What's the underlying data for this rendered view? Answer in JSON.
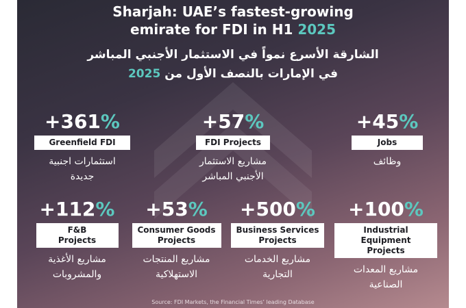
{
  "title": {
    "line1": "Sharjah: UAE’s fastest-growing",
    "line2_text": "emirate for FDI in H1 ",
    "line2_year": "2025"
  },
  "arabic_title": {
    "line1": "الشارقة الأسرع نمواً في الاستثمار الأجنبي المباشر",
    "line2_text": "في الإمارات بالنصف الأول من ",
    "line2_year": "2025"
  },
  "stats": [
    {
      "value": "+361",
      "pct": "%",
      "label": "Greenfield FDI",
      "arabic1": "استثمارات اجنبية",
      "arabic2": "جديدة"
    },
    {
      "value": "+57",
      "pct": "%",
      "label": "FDI Projects",
      "arabic1": "مشاريع الاستثمار",
      "arabic2": "الأجنبي المباشر"
    },
    {
      "value": "+45",
      "pct": "%",
      "label": "Jobs",
      "arabic1": "وظائف"
    },
    {
      "value": "+112",
      "pct": "%",
      "label1": "F&B",
      "label2": "Projects",
      "arabic1": "مشاريع الأغذية",
      "arabic2": "والمشروبات"
    },
    {
      "value": "+53",
      "pct": "%",
      "label1": "Consumer Goods",
      "label2": "Projects",
      "arabic1": "مشاريع المنتجات",
      "arabic2": "الاستهلاكية"
    },
    {
      "value": "+500",
      "pct": "%",
      "label1": "Business Services",
      "label2": "Projects",
      "arabic1": "مشاريع الخدمات",
      "arabic2": "التجارية"
    },
    {
      "value": "+100",
      "pct": "%",
      "label1": "Industrial Equipment",
      "label2": "Projects",
      "arabic1": "مشاريع المعدات",
      "arabic2": "الصناعية"
    }
  ],
  "source": "Source: FDI Markets, the Financial Times’ leading Database",
  "colors": {
    "accent": "#5cc8bf",
    "text": "#ffffff",
    "box_bg": "#ffffff",
    "box_text": "#1e1e24"
  }
}
